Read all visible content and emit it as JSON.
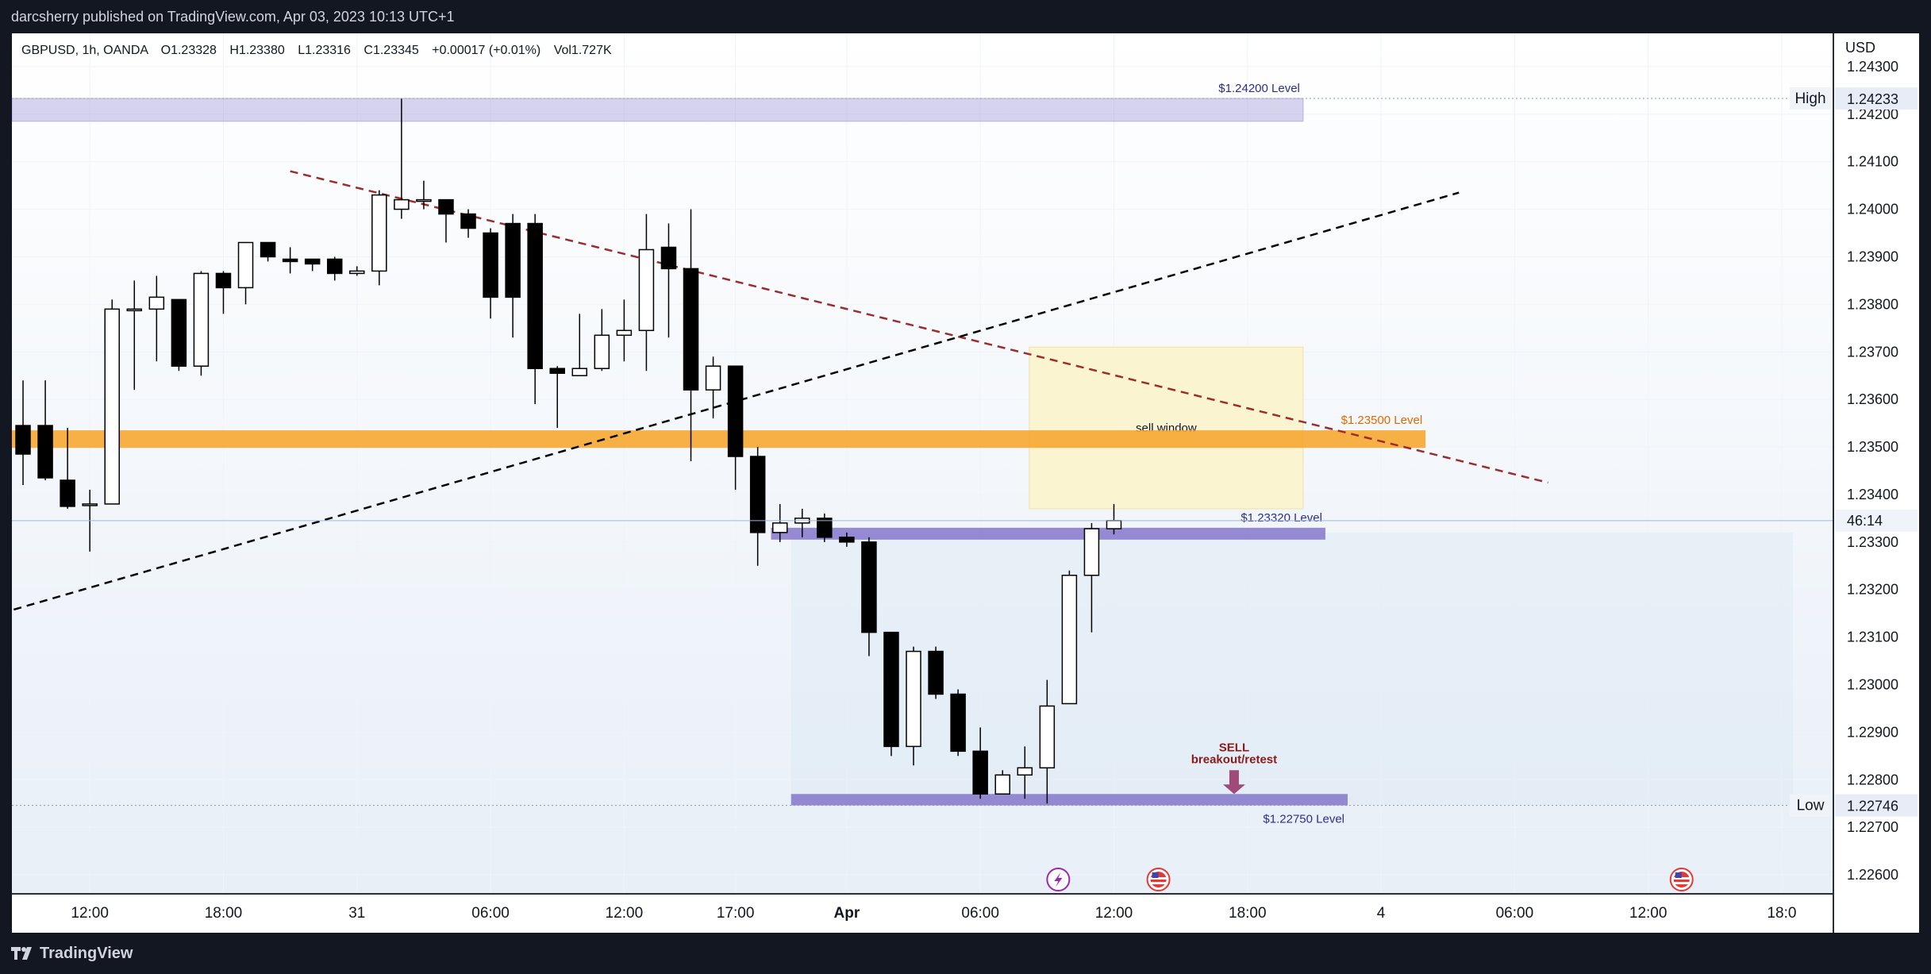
{
  "header": {
    "publisher_line": "darcsherry published on TradingView.com, Apr 03, 2023 10:13 UTC+1"
  },
  "legend": {
    "symbol": "GBPUSD, 1h, OANDA",
    "open": "O1.23328",
    "high": "H1.23380",
    "low": "L1.23316",
    "close": "C1.23345",
    "change": "+0.00017 (+0.01%)",
    "volume": "Vol1.727K"
  },
  "footer": {
    "brand": "TradingView"
  },
  "colors": {
    "bull_body": "#ffffff",
    "bear_body": "#000000",
    "zone_purple": "#7e6fc8",
    "zone_orange": "#f7a731",
    "sell_window": "#fbf3c8",
    "trend_red": "#9b2d2d",
    "sell_arrow": "#a04a7a"
  },
  "chart_data": {
    "type": "candlestick",
    "symbol": "GBPUSD",
    "timeframe": "1h",
    "currency": "USD",
    "ylim": [
      1.2256,
      1.2437
    ],
    "y_ticks": [
      "1.24300",
      "1.24200",
      "1.24100",
      "1.24000",
      "1.23900",
      "1.23800",
      "1.23700",
      "1.23600",
      "1.23500",
      "1.23400",
      "1.23300",
      "1.23200",
      "1.23100",
      "1.23000",
      "1.22900",
      "1.22800",
      "1.22700",
      "1.22600"
    ],
    "x_ticks": [
      {
        "label": "12:00",
        "bar": 3
      },
      {
        "label": "18:00",
        "bar": 9
      },
      {
        "label": "31",
        "bar": 15
      },
      {
        "label": "06:00",
        "bar": 21
      },
      {
        "label": "12:00",
        "bar": 27
      },
      {
        "label": "17:00",
        "bar": 32
      },
      {
        "label": "Apr",
        "bar": 37
      },
      {
        "label": "06:00",
        "bar": 43
      },
      {
        "label": "12:00",
        "bar": 49
      },
      {
        "label": "18:00",
        "bar": 55
      },
      {
        "label": "4",
        "bar": 61
      },
      {
        "label": "06:00",
        "bar": 67
      },
      {
        "label": "12:00",
        "bar": 73
      },
      {
        "label": "18:0",
        "bar": 79
      }
    ],
    "candles": [
      {
        "o": 1.23545,
        "h": 1.2364,
        "l": 1.2342,
        "c": 1.23485
      },
      {
        "o": 1.23545,
        "h": 1.2364,
        "l": 1.2343,
        "c": 1.23435
      },
      {
        "o": 1.2343,
        "h": 1.2354,
        "l": 1.2337,
        "c": 1.23375
      },
      {
        "o": 1.2338,
        "h": 1.2341,
        "l": 1.2328,
        "c": 1.2338
      },
      {
        "o": 1.2338,
        "h": 1.2381,
        "l": 1.2338,
        "c": 1.2379
      },
      {
        "o": 1.2379,
        "h": 1.2385,
        "l": 1.2362,
        "c": 1.2379
      },
      {
        "o": 1.2379,
        "h": 1.2386,
        "l": 1.2368,
        "c": 1.23815
      },
      {
        "o": 1.2381,
        "h": 1.2381,
        "l": 1.2366,
        "c": 1.2367
      },
      {
        "o": 1.2367,
        "h": 1.2387,
        "l": 1.2365,
        "c": 1.23865
      },
      {
        "o": 1.23865,
        "h": 1.2387,
        "l": 1.2378,
        "c": 1.23835
      },
      {
        "o": 1.23835,
        "h": 1.2393,
        "l": 1.238,
        "c": 1.2393
      },
      {
        "o": 1.2393,
        "h": 1.2393,
        "l": 1.2389,
        "c": 1.239
      },
      {
        "o": 1.23895,
        "h": 1.2392,
        "l": 1.23865,
        "c": 1.2389
      },
      {
        "o": 1.23895,
        "h": 1.2389,
        "l": 1.2387,
        "c": 1.23885
      },
      {
        "o": 1.23895,
        "h": 1.239,
        "l": 1.2385,
        "c": 1.23865
      },
      {
        "o": 1.23865,
        "h": 1.2388,
        "l": 1.2386,
        "c": 1.2387
      },
      {
        "o": 1.2387,
        "h": 1.2404,
        "l": 1.2384,
        "c": 1.2403
      },
      {
        "o": 1.24,
        "h": 1.24233,
        "l": 1.2398,
        "c": 1.2402
      },
      {
        "o": 1.2402,
        "h": 1.2406,
        "l": 1.24,
        "c": 1.2402
      },
      {
        "o": 1.2402,
        "h": 1.2402,
        "l": 1.2393,
        "c": 1.2399
      },
      {
        "o": 1.2399,
        "h": 1.24,
        "l": 1.2394,
        "c": 1.2396
      },
      {
        "o": 1.2395,
        "h": 1.2396,
        "l": 1.2377,
        "c": 1.23815
      },
      {
        "o": 1.2397,
        "h": 1.2399,
        "l": 1.2373,
        "c": 1.23815
      },
      {
        "o": 1.2397,
        "h": 1.2399,
        "l": 1.2359,
        "c": 1.23665
      },
      {
        "o": 1.23665,
        "h": 1.2367,
        "l": 1.2354,
        "c": 1.23655
      },
      {
        "o": 1.2365,
        "h": 1.2378,
        "l": 1.2365,
        "c": 1.23665
      },
      {
        "o": 1.23665,
        "h": 1.2379,
        "l": 1.2366,
        "c": 1.23735
      },
      {
        "o": 1.23735,
        "h": 1.2381,
        "l": 1.2368,
        "c": 1.23745
      },
      {
        "o": 1.23745,
        "h": 1.2399,
        "l": 1.2366,
        "c": 1.23915
      },
      {
        "o": 1.2392,
        "h": 1.2397,
        "l": 1.2373,
        "c": 1.23875
      },
      {
        "o": 1.23875,
        "h": 1.24,
        "l": 1.2347,
        "c": 1.2362
      },
      {
        "o": 1.2362,
        "h": 1.2369,
        "l": 1.2356,
        "c": 1.2367
      },
      {
        "o": 1.2367,
        "h": 1.2367,
        "l": 1.2341,
        "c": 1.2348
      },
      {
        "o": 1.2348,
        "h": 1.235,
        "l": 1.2325,
        "c": 1.2332
      },
      {
        "o": 1.2332,
        "h": 1.2338,
        "l": 1.233,
        "c": 1.2334
      },
      {
        "o": 1.2334,
        "h": 1.2337,
        "l": 1.2331,
        "c": 1.2335
      },
      {
        "o": 1.2335,
        "h": 1.2336,
        "l": 1.233,
        "c": 1.2331
      },
      {
        "o": 1.2331,
        "h": 1.2332,
        "l": 1.2329,
        "c": 1.233
      },
      {
        "o": 1.233,
        "h": 1.2331,
        "l": 1.2306,
        "c": 1.2311
      },
      {
        "o": 1.2311,
        "h": 1.2311,
        "l": 1.2285,
        "c": 1.2287
      },
      {
        "o": 1.2287,
        "h": 1.2308,
        "l": 1.2283,
        "c": 1.2307
      },
      {
        "o": 1.2307,
        "h": 1.2308,
        "l": 1.2297,
        "c": 1.2298
      },
      {
        "o": 1.2298,
        "h": 1.2299,
        "l": 1.2285,
        "c": 1.2286
      },
      {
        "o": 1.2286,
        "h": 1.2291,
        "l": 1.2276,
        "c": 1.2277
      },
      {
        "o": 1.2277,
        "h": 1.2282,
        "l": 1.2277,
        "c": 1.2281
      },
      {
        "o": 1.2281,
        "h": 1.2287,
        "l": 1.2276,
        "c": 1.22825
      },
      {
        "o": 1.22825,
        "h": 1.2301,
        "l": 1.2275,
        "c": 1.22955
      },
      {
        "o": 1.2296,
        "h": 1.2324,
        "l": 1.2296,
        "c": 1.2323
      },
      {
        "o": 1.2323,
        "h": 1.2334,
        "l": 1.2311,
        "c": 1.23328
      },
      {
        "o": 1.23328,
        "h": 1.2338,
        "l": 1.23316,
        "c": 1.23345
      }
    ],
    "zones": [
      {
        "name": "$1.24200 Level",
        "top": 1.24233,
        "bottom": 1.24185,
        "from_bar": -1,
        "to_bar": 57.5,
        "color": "#7e6fc8"
      },
      {
        "name": "$1.23500 Level",
        "top": 1.23535,
        "bottom": 1.23498,
        "from_bar": -1,
        "to_bar": 63,
        "color": "#f7a731"
      },
      {
        "name": "$1.23320 Level",
        "top": 1.2333,
        "bottom": 1.23305,
        "from_bar": 33.6,
        "to_bar": 58.5,
        "color": "#7e6fc8"
      },
      {
        "name": "$1.22750 Level",
        "top": 1.2277,
        "bottom": 1.22746,
        "from_bar": 34.5,
        "to_bar": 59.5,
        "color": "#7e6fc8"
      }
    ],
    "sell_window": {
      "label": "sell window",
      "top": 1.2371,
      "bottom": 1.2337,
      "from_bar": 45.2,
      "to_bar": 57.5
    },
    "range_box": {
      "top": 1.2332,
      "bottom": 1.22746,
      "from_bar": 34.5,
      "to_bar": 79.5
    },
    "trendlines": [
      {
        "from": {
          "bar": 12,
          "price": 1.2408
        },
        "to": {
          "bar": 68.5,
          "price": 1.23425
        },
        "style": "dashed",
        "color": "#9b2d2d"
      },
      {
        "from": {
          "bar": -1,
          "price": 1.2315
        },
        "to": {
          "bar": 64.5,
          "price": 1.24035
        },
        "style": "dashed",
        "color": "#000000"
      }
    ],
    "annotations": [
      {
        "text": "SELL",
        "bar": 54.4,
        "price": 1.2286,
        "color": "#8b1a1a"
      },
      {
        "text": "breakout/retest",
        "bar": 54.4,
        "price": 1.22835,
        "color": "#8b1a1a"
      }
    ],
    "sell_arrow": {
      "bar": 54.4,
      "price_top": 1.2282,
      "price_tip": 1.2277
    },
    "high_marker": {
      "label": "High",
      "value": "1.24233"
    },
    "low_marker": {
      "label": "Low",
      "value": "1.22746"
    },
    "price_marker": {
      "value": "1.23345",
      "countdown": "46:14"
    },
    "event_icons": [
      {
        "kind": "lightning",
        "bar": 46.5
      },
      {
        "kind": "us-flag",
        "bar": 51
      },
      {
        "kind": "us-flag",
        "bar": 74.5
      }
    ]
  }
}
